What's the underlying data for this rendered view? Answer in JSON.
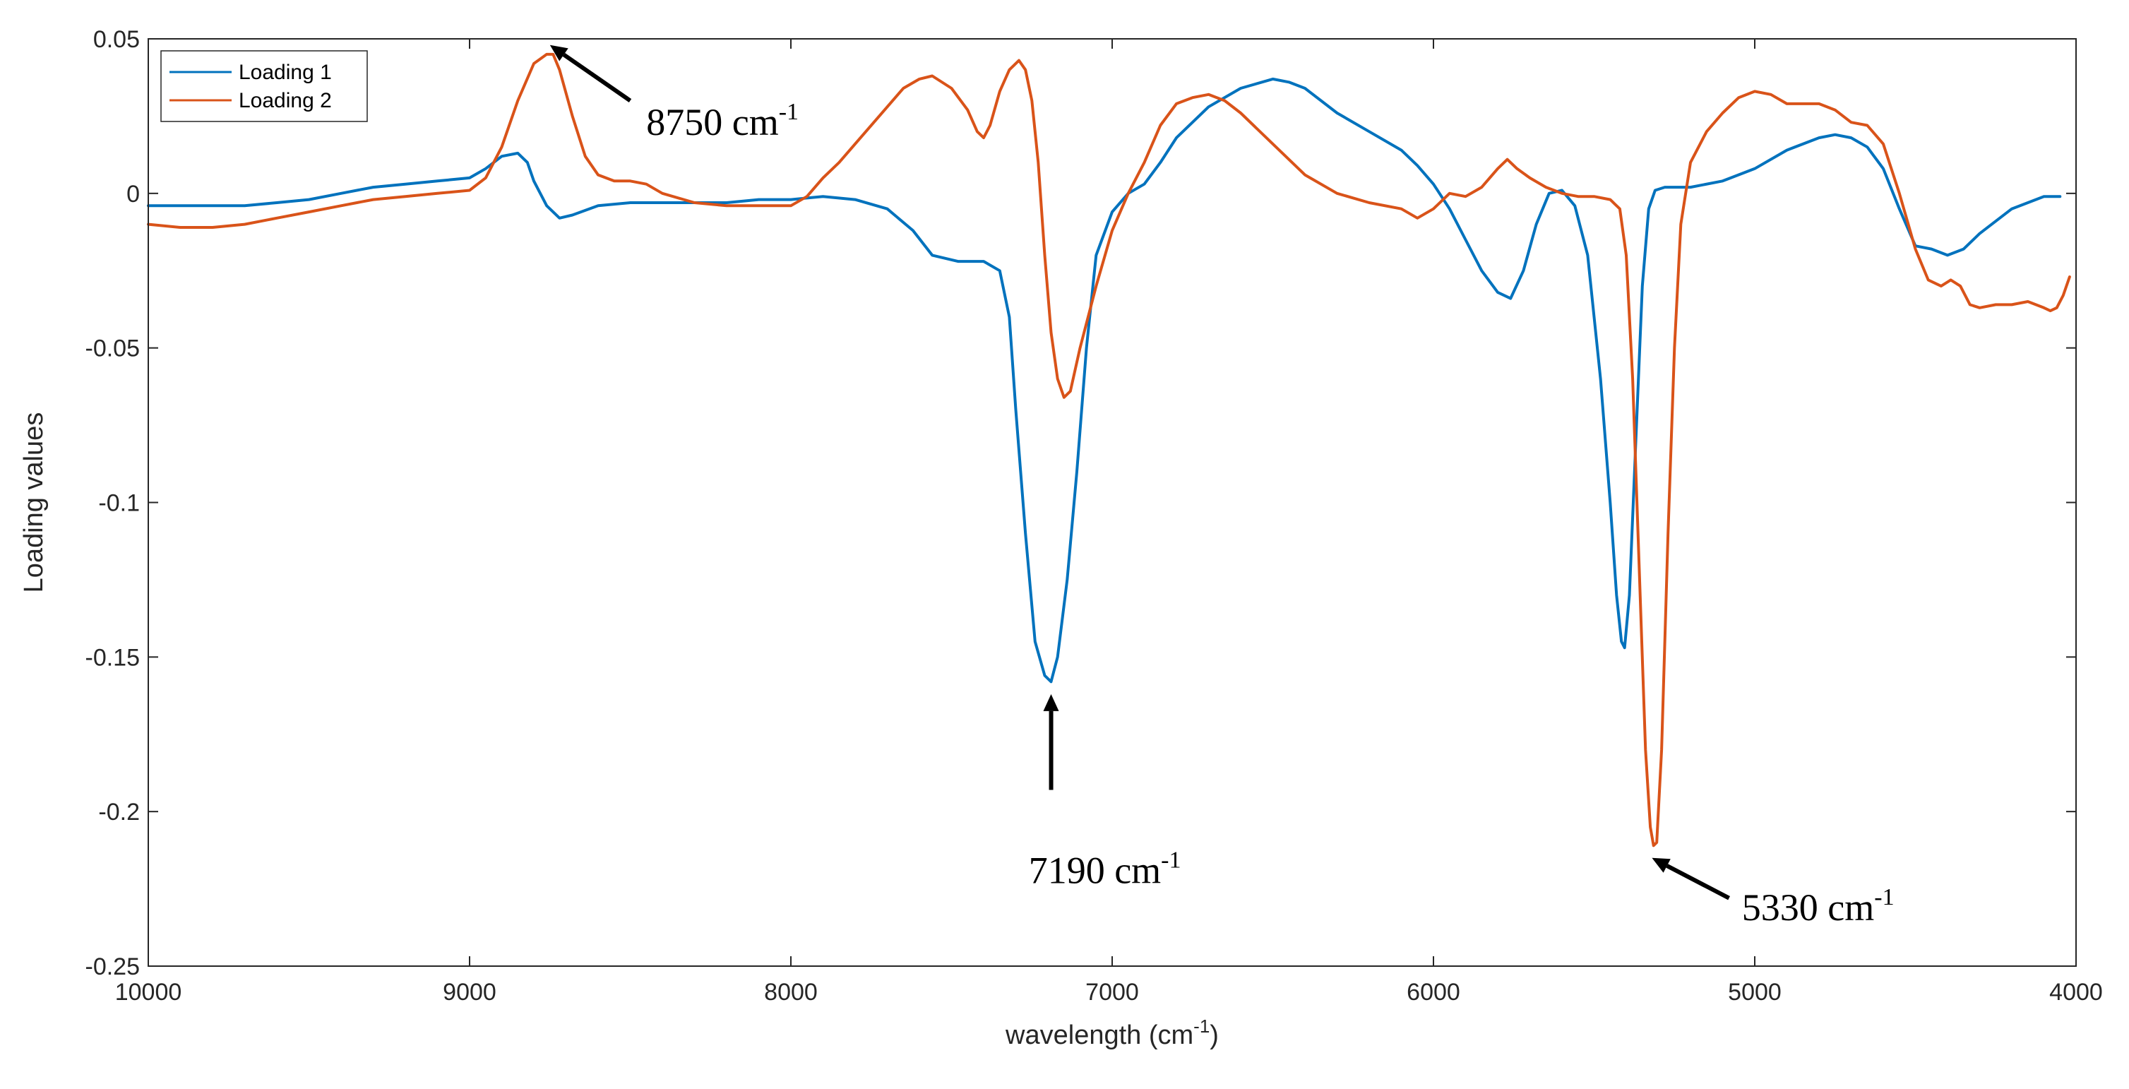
{
  "chart_data": {
    "type": "line",
    "xlabel": "wavelength (cm",
    "xlabel_sup": "-1",
    "xlabel_tail": ")",
    "ylabel": "Loading values",
    "xlim": [
      10000,
      4000
    ],
    "ylim": [
      -0.25,
      0.05
    ],
    "x_ticks": [
      10000,
      9000,
      8000,
      7000,
      6000,
      5000,
      4000
    ],
    "x_tick_labels": [
      "10000",
      "9000",
      "8000",
      "7000",
      "6000",
      "5000",
      "4000"
    ],
    "y_ticks": [
      0.05,
      0,
      -0.05,
      -0.1,
      -0.15,
      -0.2,
      -0.25
    ],
    "y_tick_labels": [
      "0.05",
      "0",
      "-0.05",
      "-0.1",
      "-0.15",
      "-0.2",
      "-0.25"
    ],
    "legend_position": "top-left",
    "series": [
      {
        "name": "Loading 1",
        "color": "#0072BD",
        "points": [
          [
            10000,
            -0.004
          ],
          [
            9900,
            -0.004
          ],
          [
            9800,
            -0.004
          ],
          [
            9700,
            -0.004
          ],
          [
            9600,
            -0.003
          ],
          [
            9500,
            -0.002
          ],
          [
            9400,
            0.0
          ],
          [
            9300,
            0.002
          ],
          [
            9200,
            0.003
          ],
          [
            9100,
            0.004
          ],
          [
            9000,
            0.005
          ],
          [
            8950,
            0.008
          ],
          [
            8900,
            0.012
          ],
          [
            8850,
            0.013
          ],
          [
            8820,
            0.01
          ],
          [
            8800,
            0.004
          ],
          [
            8760,
            -0.004
          ],
          [
            8720,
            -0.008
          ],
          [
            8680,
            -0.007
          ],
          [
            8600,
            -0.004
          ],
          [
            8500,
            -0.003
          ],
          [
            8400,
            -0.003
          ],
          [
            8300,
            -0.003
          ],
          [
            8200,
            -0.003
          ],
          [
            8100,
            -0.002
          ],
          [
            8000,
            -0.002
          ],
          [
            7900,
            -0.001
          ],
          [
            7800,
            -0.002
          ],
          [
            7700,
            -0.005
          ],
          [
            7620,
            -0.012
          ],
          [
            7560,
            -0.02
          ],
          [
            7480,
            -0.022
          ],
          [
            7400,
            -0.022
          ],
          [
            7350,
            -0.025
          ],
          [
            7320,
            -0.04
          ],
          [
            7300,
            -0.07
          ],
          [
            7270,
            -0.11
          ],
          [
            7240,
            -0.145
          ],
          [
            7210,
            -0.156
          ],
          [
            7190,
            -0.158
          ],
          [
            7170,
            -0.15
          ],
          [
            7140,
            -0.125
          ],
          [
            7110,
            -0.09
          ],
          [
            7080,
            -0.05
          ],
          [
            7050,
            -0.02
          ],
          [
            7000,
            -0.006
          ],
          [
            6950,
            0.0
          ],
          [
            6900,
            0.003
          ],
          [
            6850,
            0.01
          ],
          [
            6800,
            0.018
          ],
          [
            6700,
            0.028
          ],
          [
            6600,
            0.034
          ],
          [
            6500,
            0.037
          ],
          [
            6450,
            0.036
          ],
          [
            6400,
            0.034
          ],
          [
            6300,
            0.026
          ],
          [
            6200,
            0.02
          ],
          [
            6100,
            0.014
          ],
          [
            6050,
            0.009
          ],
          [
            6000,
            0.003
          ],
          [
            5950,
            -0.005
          ],
          [
            5900,
            -0.015
          ],
          [
            5850,
            -0.025
          ],
          [
            5800,
            -0.032
          ],
          [
            5760,
            -0.034
          ],
          [
            5720,
            -0.025
          ],
          [
            5680,
            -0.01
          ],
          [
            5640,
            0.0
          ],
          [
            5600,
            0.001
          ],
          [
            5560,
            -0.004
          ],
          [
            5520,
            -0.02
          ],
          [
            5480,
            -0.06
          ],
          [
            5450,
            -0.1
          ],
          [
            5430,
            -0.13
          ],
          [
            5415,
            -0.145
          ],
          [
            5405,
            -0.147
          ],
          [
            5390,
            -0.13
          ],
          [
            5370,
            -0.08
          ],
          [
            5350,
            -0.03
          ],
          [
            5330,
            -0.005
          ],
          [
            5310,
            0.001
          ],
          [
            5280,
            0.002
          ],
          [
            5200,
            0.002
          ],
          [
            5100,
            0.004
          ],
          [
            5000,
            0.008
          ],
          [
            4900,
            0.014
          ],
          [
            4800,
            0.018
          ],
          [
            4750,
            0.019
          ],
          [
            4700,
            0.018
          ],
          [
            4650,
            0.015
          ],
          [
            4600,
            0.008
          ],
          [
            4550,
            -0.005
          ],
          [
            4500,
            -0.017
          ],
          [
            4450,
            -0.018
          ],
          [
            4400,
            -0.02
          ],
          [
            4350,
            -0.018
          ],
          [
            4300,
            -0.013
          ],
          [
            4200,
            -0.005
          ],
          [
            4100,
            -0.001
          ],
          [
            4050,
            -0.001
          ]
        ]
      },
      {
        "name": "Loading 2",
        "color": "#D95319",
        "points": [
          [
            10000,
            -0.01
          ],
          [
            9900,
            -0.011
          ],
          [
            9800,
            -0.011
          ],
          [
            9700,
            -0.01
          ],
          [
            9600,
            -0.008
          ],
          [
            9500,
            -0.006
          ],
          [
            9400,
            -0.004
          ],
          [
            9300,
            -0.002
          ],
          [
            9200,
            -0.001
          ],
          [
            9100,
            0.0
          ],
          [
            9000,
            0.001
          ],
          [
            8950,
            0.005
          ],
          [
            8900,
            0.015
          ],
          [
            8850,
            0.03
          ],
          [
            8800,
            0.042
          ],
          [
            8760,
            0.045
          ],
          [
            8740,
            0.045
          ],
          [
            8720,
            0.04
          ],
          [
            8680,
            0.025
          ],
          [
            8640,
            0.012
          ],
          [
            8600,
            0.006
          ],
          [
            8550,
            0.004
          ],
          [
            8500,
            0.004
          ],
          [
            8450,
            0.003
          ],
          [
            8400,
            0.0
          ],
          [
            8300,
            -0.003
          ],
          [
            8200,
            -0.004
          ],
          [
            8100,
            -0.004
          ],
          [
            8000,
            -0.004
          ],
          [
            7950,
            -0.001
          ],
          [
            7900,
            0.005
          ],
          [
            7850,
            0.01
          ],
          [
            7800,
            0.016
          ],
          [
            7700,
            0.028
          ],
          [
            7650,
            0.034
          ],
          [
            7600,
            0.037
          ],
          [
            7560,
            0.038
          ],
          [
            7500,
            0.034
          ],
          [
            7450,
            0.027
          ],
          [
            7420,
            0.02
          ],
          [
            7400,
            0.018
          ],
          [
            7380,
            0.022
          ],
          [
            7350,
            0.033
          ],
          [
            7320,
            0.04
          ],
          [
            7290,
            0.043
          ],
          [
            7270,
            0.04
          ],
          [
            7250,
            0.03
          ],
          [
            7230,
            0.01
          ],
          [
            7210,
            -0.02
          ],
          [
            7190,
            -0.045
          ],
          [
            7170,
            -0.06
          ],
          [
            7150,
            -0.066
          ],
          [
            7130,
            -0.064
          ],
          [
            7100,
            -0.05
          ],
          [
            7050,
            -0.03
          ],
          [
            7000,
            -0.012
          ],
          [
            6950,
            0.0
          ],
          [
            6900,
            0.01
          ],
          [
            6850,
            0.022
          ],
          [
            6800,
            0.029
          ],
          [
            6750,
            0.031
          ],
          [
            6700,
            0.032
          ],
          [
            6650,
            0.03
          ],
          [
            6600,
            0.026
          ],
          [
            6500,
            0.016
          ],
          [
            6400,
            0.006
          ],
          [
            6300,
            0.0
          ],
          [
            6200,
            -0.003
          ],
          [
            6100,
            -0.005
          ],
          [
            6050,
            -0.008
          ],
          [
            6000,
            -0.005
          ],
          [
            5950,
            0.0
          ],
          [
            5900,
            -0.001
          ],
          [
            5850,
            0.002
          ],
          [
            5800,
            0.008
          ],
          [
            5770,
            0.011
          ],
          [
            5740,
            0.008
          ],
          [
            5700,
            0.005
          ],
          [
            5650,
            0.002
          ],
          [
            5600,
            0.0
          ],
          [
            5550,
            -0.001
          ],
          [
            5500,
            -0.001
          ],
          [
            5450,
            -0.002
          ],
          [
            5420,
            -0.005
          ],
          [
            5400,
            -0.02
          ],
          [
            5380,
            -0.06
          ],
          [
            5360,
            -0.12
          ],
          [
            5340,
            -0.18
          ],
          [
            5325,
            -0.205
          ],
          [
            5315,
            -0.211
          ],
          [
            5305,
            -0.21
          ],
          [
            5290,
            -0.18
          ],
          [
            5270,
            -0.11
          ],
          [
            5250,
            -0.05
          ],
          [
            5230,
            -0.01
          ],
          [
            5200,
            0.01
          ],
          [
            5150,
            0.02
          ],
          [
            5100,
            0.026
          ],
          [
            5050,
            0.031
          ],
          [
            5000,
            0.033
          ],
          [
            4950,
            0.032
          ],
          [
            4900,
            0.029
          ],
          [
            4850,
            0.029
          ],
          [
            4800,
            0.029
          ],
          [
            4750,
            0.027
          ],
          [
            4700,
            0.023
          ],
          [
            4650,
            0.022
          ],
          [
            4600,
            0.016
          ],
          [
            4550,
            0.0
          ],
          [
            4500,
            -0.018
          ],
          [
            4460,
            -0.028
          ],
          [
            4420,
            -0.03
          ],
          [
            4390,
            -0.028
          ],
          [
            4360,
            -0.03
          ],
          [
            4330,
            -0.036
          ],
          [
            4300,
            -0.037
          ],
          [
            4250,
            -0.036
          ],
          [
            4200,
            -0.036
          ],
          [
            4150,
            -0.035
          ],
          [
            4100,
            -0.037
          ],
          [
            4080,
            -0.038
          ],
          [
            4060,
            -0.037
          ],
          [
            4040,
            -0.033
          ],
          [
            4020,
            -0.027
          ]
        ]
      }
    ],
    "annotations": [
      {
        "label": "8750 cm",
        "sup": "-1",
        "target": [
          8750,
          0.048
        ],
        "tail": [
          8500,
          0.03
        ],
        "text_anchor": [
          8450,
          0.023
        ]
      },
      {
        "label": "7190 cm",
        "sup": "-1",
        "target": [
          7190,
          -0.162
        ],
        "tail": [
          7190,
          -0.193
        ],
        "text_anchor": [
          7260,
          -0.219
        ]
      },
      {
        "label": "5330 cm",
        "sup": "-1",
        "target": [
          5320,
          -0.215
        ],
        "tail": [
          5080,
          -0.228
        ],
        "text_anchor": [
          5040,
          -0.231
        ]
      }
    ]
  }
}
